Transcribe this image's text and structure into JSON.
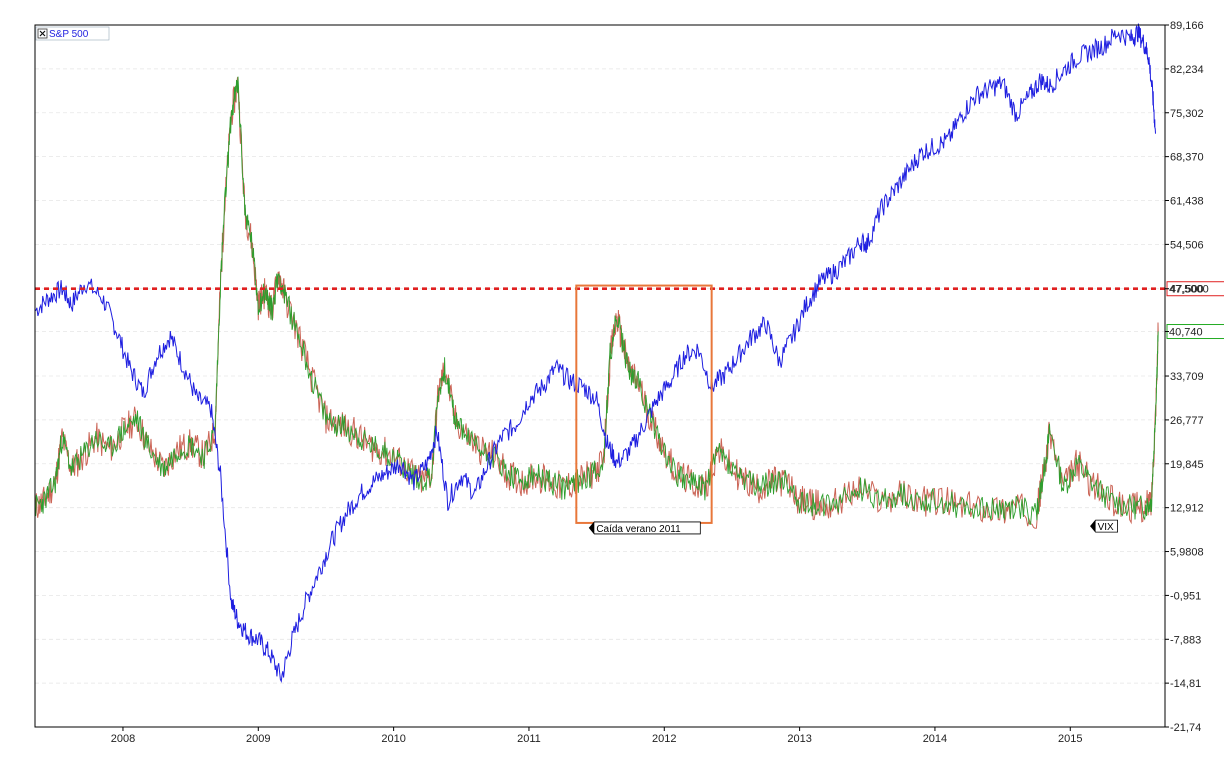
{
  "chart_data": {
    "type": "line",
    "y_ticks": [
      "89,166",
      "82,234",
      "75,302",
      "68,370",
      "61,438",
      "54,506",
      "47,500",
      "40,740",
      "33,709",
      "26,777",
      "19,845",
      "12,912",
      "5,9808",
      "-0,951",
      "-7,883",
      "-14,81",
      "-21,74"
    ],
    "y_tick_values": [
      89.166,
      82.234,
      75.302,
      68.37,
      61.438,
      54.506,
      47.5,
      40.74,
      33.709,
      26.777,
      19.845,
      12.912,
      5.9808,
      -0.951,
      -7.883,
      -14.81,
      -21.74
    ],
    "x_ticks": [
      "2008",
      "2009",
      "2010",
      "2011",
      "2012",
      "2013",
      "2014",
      "2015"
    ],
    "x_tick_values": [
      2008.0,
      2009.0,
      2010.0,
      2011.0,
      2012.0,
      2013.0,
      2014.0,
      2015.0
    ],
    "xlim": [
      2007.35,
      2015.7
    ],
    "ylim": [
      -21.74,
      89.166
    ],
    "series": [
      {
        "name": "S&P 500",
        "color": "#1f1fe0",
        "x": [
          2007.35,
          2007.45,
          2007.55,
          2007.62,
          2007.72,
          2007.85,
          2007.95,
          2008.05,
          2008.15,
          2008.25,
          2008.35,
          2008.45,
          2008.55,
          2008.65,
          2008.72,
          2008.8,
          2008.85,
          2008.92,
          2009.0,
          2009.08,
          2009.17,
          2009.25,
          2009.35,
          2009.45,
          2009.55,
          2009.65,
          2009.75,
          2009.85,
          2009.95,
          2010.05,
          2010.15,
          2010.25,
          2010.32,
          2010.4,
          2010.5,
          2010.6,
          2010.7,
          2010.8,
          2010.9,
          2011.0,
          2011.1,
          2011.2,
          2011.3,
          2011.4,
          2011.5,
          2011.58,
          2011.65,
          2011.75,
          2011.85,
          2011.95,
          2012.05,
          2012.15,
          2012.25,
          2012.35,
          2012.45,
          2012.55,
          2012.65,
          2012.75,
          2012.85,
          2012.95,
          2013.05,
          2013.15,
          2013.25,
          2013.35,
          2013.45,
          2013.5,
          2013.6,
          2013.7,
          2013.8,
          2013.9,
          2014.0,
          2014.1,
          2014.2,
          2014.3,
          2014.4,
          2014.5,
          2014.6,
          2014.7,
          2014.78,
          2014.85,
          2014.95,
          2015.05,
          2015.15,
          2015.25,
          2015.35,
          2015.45,
          2015.5,
          2015.55,
          2015.58,
          2015.61,
          2015.63
        ],
        "y": [
          44.0,
          46.0,
          47.5,
          45.0,
          48.5,
          46.0,
          41.0,
          35.0,
          31.0,
          37.0,
          40.0,
          35.0,
          30.0,
          28.5,
          18.0,
          -2.0,
          -5.0,
          -7.0,
          -8.0,
          -10.0,
          -14.0,
          -8.0,
          -2.0,
          3.0,
          8.0,
          12.0,
          15.0,
          17.0,
          18.5,
          20.0,
          17.0,
          20.0,
          25.0,
          14.0,
          18.0,
          15.0,
          20.0,
          24.0,
          26.0,
          30.0,
          32.0,
          35.0,
          33.0,
          32.0,
          30.0,
          23.0,
          20.0,
          22.0,
          26.0,
          30.0,
          33.0,
          37.0,
          38.0,
          32.0,
          34.0,
          37.0,
          40.0,
          42.0,
          36.0,
          40.0,
          45.0,
          48.5,
          50.0,
          52.0,
          55.0,
          54.5,
          60.0,
          63.0,
          66.0,
          69.0,
          70.0,
          71.0,
          75.0,
          78.0,
          79.0,
          80.0,
          75.0,
          78.0,
          80.5,
          79.5,
          82.0,
          84.0,
          85.0,
          86.0,
          88.0,
          87.0,
          88.0,
          86.0,
          84.0,
          78.0,
          72.0
        ]
      },
      {
        "name": "VIX",
        "color": "#2e9e2e",
        "x": [
          2007.35,
          2007.42,
          2007.5,
          2007.55,
          2007.62,
          2007.7,
          2007.8,
          2007.9,
          2008.0,
          2008.1,
          2008.2,
          2008.3,
          2008.4,
          2008.5,
          2008.6,
          2008.68,
          2008.72,
          2008.75,
          2008.8,
          2008.85,
          2008.9,
          2008.95,
          2009.0,
          2009.05,
          2009.1,
          2009.15,
          2009.2,
          2009.3,
          2009.4,
          2009.5,
          2009.6,
          2009.7,
          2009.8,
          2009.9,
          2010.0,
          2010.1,
          2010.2,
          2010.28,
          2010.33,
          2010.38,
          2010.45,
          2010.55,
          2010.65,
          2010.75,
          2010.85,
          2010.95,
          2011.05,
          2011.15,
          2011.25,
          2011.35,
          2011.45,
          2011.55,
          2011.6,
          2011.65,
          2011.7,
          2011.75,
          2011.8,
          2011.9,
          2012.0,
          2012.1,
          2012.2,
          2012.3,
          2012.4,
          2012.5,
          2012.6,
          2012.7,
          2012.8,
          2012.9,
          2013.0,
          2013.1,
          2013.2,
          2013.3,
          2013.45,
          2013.6,
          2013.75,
          2013.9,
          2014.05,
          2014.2,
          2014.35,
          2014.5,
          2014.6,
          2014.75,
          2014.8,
          2014.85,
          2014.95,
          2015.05,
          2015.15,
          2015.3,
          2015.45,
          2015.55,
          2015.6,
          2015.63,
          2015.65
        ],
        "y": [
          13.0,
          14.0,
          17.0,
          24.0,
          19.0,
          21.0,
          24.0,
          22.0,
          25.0,
          27.0,
          22.0,
          19.0,
          22.0,
          23.0,
          21.0,
          25.0,
          48.0,
          60.0,
          75.0,
          80.0,
          60.0,
          55.0,
          45.0,
          47.0,
          44.0,
          50.0,
          46.0,
          40.0,
          33.0,
          27.0,
          26.0,
          25.0,
          23.0,
          22.0,
          21.0,
          19.0,
          17.0,
          18.0,
          31.0,
          35.0,
          27.0,
          24.0,
          22.0,
          21.0,
          18.0,
          17.0,
          18.0,
          17.0,
          16.0,
          17.0,
          18.0,
          20.0,
          37.0,
          43.0,
          38.0,
          34.0,
          33.0,
          27.0,
          22.0,
          18.0,
          17.0,
          16.0,
          22.0,
          19.0,
          17.0,
          16.0,
          17.0,
          17.0,
          14.0,
          13.5,
          13.0,
          14.0,
          16.0,
          14.0,
          15.0,
          14.0,
          14.0,
          13.0,
          13.0,
          12.5,
          13.0,
          12.0,
          18.0,
          25.0,
          16.0,
          20.0,
          17.0,
          14.0,
          13.0,
          13.0,
          14.0,
          28.0,
          40.74
        ]
      }
    ],
    "reference_line": {
      "value": 47.5,
      "label": "47,5000",
      "color": "#e02020",
      "style": "dashed"
    },
    "annotations": [
      {
        "text": "Caída verano 2011",
        "x_range": [
          2011.35,
          2012.35
        ],
        "y_range": [
          10.5,
          48.0
        ],
        "color": "#e8773a"
      },
      {
        "text": "VIX",
        "x": 2015.15,
        "y": 10.0
      }
    ],
    "legend": {
      "label": "S&P 500",
      "position": "top-left"
    },
    "value_tags": [
      {
        "label": "47,5000",
        "value": 47.5,
        "color": "#e02020"
      },
      {
        "label": "40,740",
        "value": 40.74,
        "color": "#22aa22"
      }
    ],
    "grid": true
  }
}
